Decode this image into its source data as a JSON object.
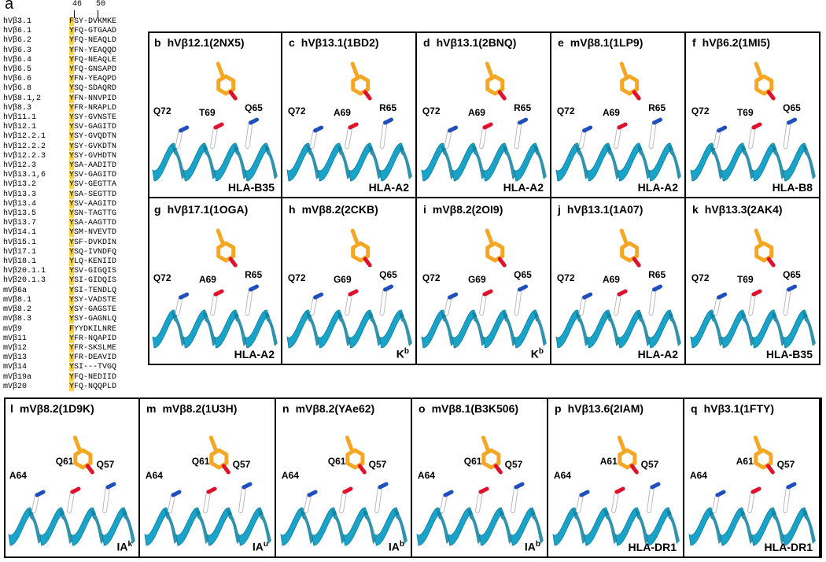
{
  "panel_a": {
    "letter": "a",
    "tick_labels": [
      "46",
      "50"
    ],
    "rows": [
      [
        "hVβ3.1",
        "FSY-DVKMKE"
      ],
      [
        "hVβ6.1",
        "YFQ-GTGAAD"
      ],
      [
        "hVβ6.2",
        "YFQ-NEAQLD"
      ],
      [
        "hVβ6.3",
        "YFN-YEAQQD"
      ],
      [
        "hVβ6.4",
        "YFQ-NEAQLE"
      ],
      [
        "hVβ6.5",
        "YFQ-GNSAPD"
      ],
      [
        "hVβ6.6",
        "YFN-YEAQPD"
      ],
      [
        "hVβ6.8",
        "YSQ-SDAQRD"
      ],
      [
        "hVβ8.1,2",
        "YFN-NNVPID"
      ],
      [
        "hVβ8.3",
        "YFR-NRAPLD"
      ],
      [
        "hVβ11.1",
        "YSY-GVNSTE"
      ],
      [
        "hVβ12.1",
        "YSV-GAGITD"
      ],
      [
        "hVβ12.2.1",
        "YSY-GVQDTN"
      ],
      [
        "hVβ12.2.2",
        "YSY-GVKDTN"
      ],
      [
        "hVβ12.2.3",
        "YSY-GVHDTN"
      ],
      [
        "hVβ12.3",
        "YSA-AADITD"
      ],
      [
        "hVβ13.1,6",
        "YSV-GAGITD"
      ],
      [
        "hVβ13.2",
        "YSV-GEGTTA"
      ],
      [
        "hVβ13.3",
        "YSA-SEGTTD"
      ],
      [
        "hVβ13.4",
        "YSV-AAGITD"
      ],
      [
        "hVβ13.5",
        "YSN-TAGTTG"
      ],
      [
        "hVβ13.7",
        "YSA-AAGTTD"
      ],
      [
        "hVβ14.1",
        "YSM-NVEVTD"
      ],
      [
        "hVβ15.1",
        "YSF-DVKDIN"
      ],
      [
        "hVβ17.1",
        "YSQ-IVNDFQ"
      ],
      [
        "hVβ18.1",
        "YLQ-KENIID"
      ],
      [
        "hVβ20.1.1",
        "YSV-GIGQIS"
      ],
      [
        "hVβ20.1.3",
        "YSI-GIDQIS"
      ],
      [
        "mVβ6a",
        "YSI-TENDLQ"
      ],
      [
        "mVβ8.1",
        "YSY-VADSTE"
      ],
      [
        "mVβ8.2",
        "YSY-GAGSTE"
      ],
      [
        "mVβ8.3",
        "YSY-GAGNLQ"
      ],
      [
        "mVβ9",
        "FYYDKILNRE"
      ],
      [
        "mVβ11",
        "YFR-NQAPID"
      ],
      [
        "mVβ12",
        "YFR-SKSLME"
      ],
      [
        "mVβ13",
        "YFR-DEAVID"
      ],
      [
        "mVβ14",
        "YSI---TVGQ"
      ],
      [
        "mVβ19a",
        "YFQ-NEDIID"
      ],
      [
        "mVβ20",
        "YFQ-NQQPLD"
      ]
    ]
  },
  "panels": [
    {
      "letter": "b",
      "title": "hVβ12.1(2NX5)",
      "mhc": "HLA-B35",
      "mhc_sup": "",
      "residues": [
        "Q72",
        "T69",
        "Q65"
      ]
    },
    {
      "letter": "c",
      "title": "hVβ13.1(1BD2)",
      "mhc": "HLA-A2",
      "mhc_sup": "",
      "residues": [
        "Q72",
        "A69",
        "R65"
      ]
    },
    {
      "letter": "d",
      "title": "hVβ13.1(2BNQ)",
      "mhc": "HLA-A2",
      "mhc_sup": "",
      "residues": [
        "Q72",
        "A69",
        "R65"
      ]
    },
    {
      "letter": "e",
      "title": "mVβ8.1(1LP9)",
      "mhc": "HLA-A2",
      "mhc_sup": "",
      "residues": [
        "Q72",
        "A69",
        "R65"
      ]
    },
    {
      "letter": "f",
      "title": "hVβ6.2(1MI5)",
      "mhc": "HLA-B8",
      "mhc_sup": "",
      "residues": [
        "Q72",
        "T69",
        "Q65"
      ]
    },
    {
      "letter": "g",
      "title": "hVβ17.1(1OGA)",
      "mhc": "HLA-A2",
      "mhc_sup": "",
      "residues": [
        "Q72",
        "A69",
        "R65"
      ]
    },
    {
      "letter": "h",
      "title": "mVβ8.2(2CKB)",
      "mhc": "K",
      "mhc_sup": "b",
      "residues": [
        "Q72",
        "G69",
        "Q65"
      ]
    },
    {
      "letter": "i",
      "title": "mVβ8.2(2OI9)",
      "mhc": "K",
      "mhc_sup": "b",
      "residues": [
        "Q72",
        "G69",
        "Q65"
      ]
    },
    {
      "letter": "j",
      "title": "hVβ13.1(1A07)",
      "mhc": "HLA-A2",
      "mhc_sup": "",
      "residues": [
        "Q72",
        "A69",
        "R65"
      ]
    },
    {
      "letter": "k",
      "title": "hVβ13.3(2AK4)",
      "mhc": "HLA-B35",
      "mhc_sup": "",
      "residues": [
        "Q72",
        "T69",
        "Q65"
      ]
    },
    {
      "letter": "l",
      "title": "mVβ8.2(1D9K)",
      "mhc": "IA",
      "mhc_sup": "k",
      "residues": [
        "A64",
        "Q61",
        "Q57"
      ]
    },
    {
      "letter": "m",
      "title": "mVβ8.2(1U3H)",
      "mhc": "IA",
      "mhc_sup": "u",
      "residues": [
        "A64",
        "Q61",
        "Q57"
      ]
    },
    {
      "letter": "n",
      "title": "mVβ8.2(YAe62)",
      "mhc": "IA",
      "mhc_sup": "b",
      "residues": [
        "A64",
        "Q61",
        "Q57"
      ]
    },
    {
      "letter": "o",
      "title": "mVβ8.1(B3K506)",
      "mhc": "IA",
      "mhc_sup": "b",
      "residues": [
        "A64",
        "Q61",
        "Q57"
      ]
    },
    {
      "letter": "p",
      "title": "hVβ13.6(2IAM)",
      "mhc": "HLA-DR1",
      "mhc_sup": "",
      "residues": [
        "A64",
        "A61",
        "Q57"
      ]
    },
    {
      "letter": "q",
      "title": "hVβ3.1(1FTY)",
      "mhc": "HLA-DR1",
      "mhc_sup": "",
      "residues": [
        "A64",
        "A61",
        "Q57"
      ]
    }
  ],
  "colors": {
    "helix": "#1aa3c8",
    "helix_dark": "#0d7fa0",
    "tyr": "#f5a623",
    "oxygen": "#e0112b",
    "nitrogen": "#1f4fbf",
    "stick": "#ffffff"
  }
}
